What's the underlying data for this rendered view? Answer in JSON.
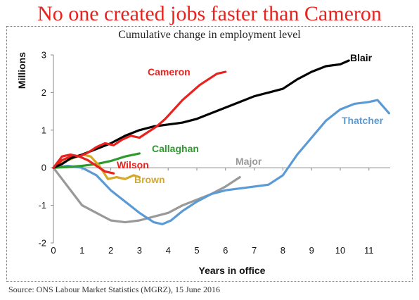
{
  "headline": "No one created jobs faster than Cameron",
  "source": "Source: ONS Labour Market Statistics (MGRZ), 15 June 2016",
  "chart_data": {
    "type": "line",
    "title": "Cumulative change in employment level",
    "xlabel": "Years in office",
    "ylabel": "Millions",
    "xlim": [
      0,
      11.8
    ],
    "ylim": [
      -2,
      3
    ],
    "xticks": [
      "0",
      "1",
      "2",
      "3",
      "4",
      "5",
      "6",
      "7",
      "8",
      "9",
      "10",
      "11"
    ],
    "yticks": [
      "-2",
      "-1",
      "0",
      "1",
      "2",
      "3"
    ],
    "grid": false,
    "legend": "labels next to lines",
    "series": [
      {
        "name": "Blair",
        "color": "#000000",
        "x": [
          0,
          0.3,
          0.6,
          1,
          1.5,
          2,
          2.5,
          3,
          3.5,
          4,
          4.5,
          5,
          5.5,
          6,
          6.5,
          7,
          7.5,
          8,
          8.5,
          9,
          9.5,
          10,
          10.3
        ],
        "y": [
          0,
          0.1,
          0.25,
          0.35,
          0.5,
          0.65,
          0.85,
          1.0,
          1.1,
          1.15,
          1.2,
          1.3,
          1.45,
          1.6,
          1.75,
          1.9,
          2.0,
          2.1,
          2.35,
          2.55,
          2.7,
          2.75,
          2.85
        ]
      },
      {
        "name": "Cameron",
        "color": "#e8231f",
        "x": [
          0,
          0.3,
          0.6,
          0.9,
          1.2,
          1.5,
          1.8,
          2.1,
          2.4,
          2.7,
          3.0,
          3.3,
          3.6,
          3.9,
          4.2,
          4.5,
          4.8,
          5.1,
          5.4,
          5.7,
          6.0
        ],
        "y": [
          0,
          0.3,
          0.35,
          0.3,
          0.4,
          0.55,
          0.65,
          0.6,
          0.75,
          0.85,
          0.8,
          0.95,
          1.1,
          1.3,
          1.55,
          1.8,
          2.0,
          2.2,
          2.35,
          2.5,
          2.55
        ]
      },
      {
        "name": "Thatcher",
        "color": "#5b9bd5",
        "x": [
          0,
          0.5,
          1,
          1.5,
          2,
          2.5,
          3,
          3.5,
          3.8,
          4.1,
          4.5,
          5,
          5.5,
          6,
          6.5,
          7,
          7.5,
          8,
          8.5,
          9,
          9.5,
          10,
          10.5,
          11,
          11.3,
          11.7
        ],
        "y": [
          0,
          0.05,
          0,
          -0.2,
          -0.6,
          -0.9,
          -1.2,
          -1.45,
          -1.5,
          -1.4,
          -1.15,
          -0.9,
          -0.7,
          -0.6,
          -0.55,
          -0.5,
          -0.45,
          -0.2,
          0.35,
          0.8,
          1.25,
          1.55,
          1.7,
          1.75,
          1.8,
          1.45
        ]
      },
      {
        "name": "Callaghan",
        "color": "#2e9a2e",
        "x": [
          0,
          0.5,
          1,
          1.5,
          2,
          2.5,
          3
        ],
        "y": [
          0,
          0.02,
          0.05,
          0.1,
          0.18,
          0.3,
          0.38
        ]
      },
      {
        "name": "Wilson",
        "color": "#e8231f",
        "x": [
          0,
          0.3,
          0.6,
          0.9,
          1.2,
          1.5,
          1.8,
          2.1
        ],
        "y": [
          0,
          0.2,
          0.3,
          0.3,
          0.2,
          0.05,
          -0.1,
          -0.15
        ]
      },
      {
        "name": "Brown",
        "color": "#d4a82a",
        "x": [
          0,
          0.5,
          1,
          1.3,
          1.6,
          1.9,
          2.2,
          2.5,
          2.8,
          3.0
        ],
        "y": [
          0,
          0.2,
          0.35,
          0.3,
          0.05,
          -0.3,
          -0.25,
          -0.3,
          -0.2,
          -0.25
        ]
      },
      {
        "name": "Major",
        "color": "#999999",
        "x": [
          0,
          0.5,
          1,
          1.5,
          2,
          2.5,
          3,
          3.5,
          4,
          4.5,
          5,
          5.5,
          6,
          6.5
        ],
        "y": [
          0,
          -0.5,
          -1.0,
          -1.2,
          -1.4,
          -1.45,
          -1.4,
          -1.3,
          -1.2,
          -1.0,
          -0.85,
          -0.7,
          -0.5,
          -0.25
        ]
      }
    ]
  }
}
